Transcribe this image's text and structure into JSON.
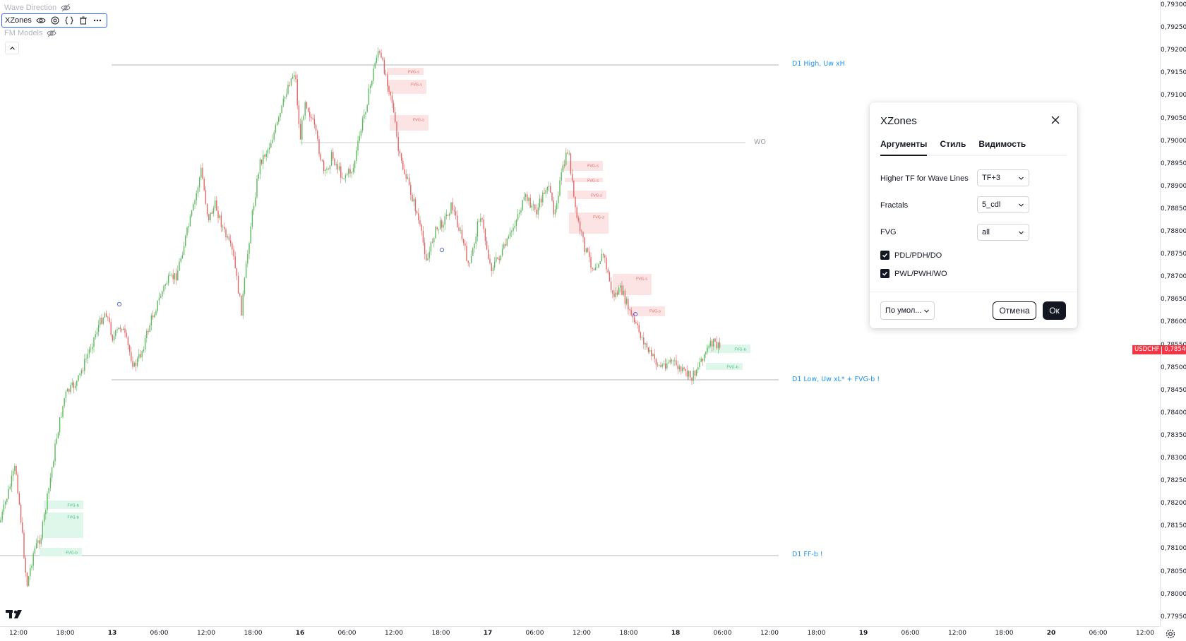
{
  "legend": {
    "items": [
      {
        "label": "Wave Direction"
      },
      {
        "label": "XZones"
      },
      {
        "label": "FM Models"
      }
    ]
  },
  "price_axis": {
    "labels": [
      "0,79300",
      "0,79250",
      "0,79200",
      "0,79150",
      "0,79100",
      "0,79050",
      "0,79000",
      "0,78950",
      "0,78900",
      "0,78850",
      "0,78800",
      "0,78750",
      "0,78700",
      "0,78650",
      "0,78600",
      "0,78550",
      "0,78500",
      "0,78450",
      "0,78400",
      "0,78350",
      "0,78300",
      "0,78250",
      "0,78200",
      "0,78150",
      "0,78100",
      "0,78050",
      "0,78000",
      "0,77950"
    ],
    "symbol": "USDCHF",
    "last_price": "0,78540"
  },
  "time_axis": {
    "labels": [
      "12:00",
      "18:00",
      "13",
      "06:00",
      "12:00",
      "18:00",
      "16",
      "06:00",
      "12:00",
      "18:00",
      "17",
      "06:00",
      "12:00",
      "18:00",
      "18",
      "06:00",
      "12:00",
      "18:00",
      "19",
      "06:00",
      "12:00",
      "18:00",
      "20",
      "06:00",
      "12:00"
    ]
  },
  "levels": {
    "d1_high": "D1 High, Uw xH",
    "wo": "WO",
    "d1_low": "D1 Low, Uw xL* + FVG-b !",
    "d1_ff": "D1 FF-b !"
  },
  "fvg": {
    "sell": "FVG-s",
    "buy": "FVG-b"
  },
  "colors": {
    "up": "#5cb85c",
    "down": "#e06666",
    "fvg_sell": "#fde4e4",
    "fvg_buy": "#dff7ea",
    "level_text": "#2196f3",
    "accent": "#2962ff"
  },
  "dialog": {
    "title": "XZones",
    "tabs": [
      {
        "label": "Аргументы",
        "active": true
      },
      {
        "label": "Стиль",
        "active": false
      },
      {
        "label": "Видимость",
        "active": false
      }
    ],
    "fields": {
      "higher_tf": {
        "label": "Higher TF for Wave Lines",
        "value": "TF+3"
      },
      "fractals": {
        "label": "Fractals",
        "value": "5_cdl"
      },
      "fvg": {
        "label": "FVG",
        "value": "all"
      }
    },
    "checkboxes": [
      {
        "label": "PDL/PDH/DO",
        "checked": true
      },
      {
        "label": "PWL/PWH/WO",
        "checked": true
      }
    ],
    "defaults_label": "По умол...",
    "cancel_label": "Отмена",
    "ok_label": "Ок"
  },
  "icons": [
    "eye-off-icon",
    "eye-icon",
    "settings-icon",
    "source-code-icon",
    "trash-icon",
    "more-icon",
    "chevron-up-icon",
    "close-icon",
    "chevron-down-icon",
    "check-icon",
    "gear-icon",
    "tradingview-logo"
  ]
}
